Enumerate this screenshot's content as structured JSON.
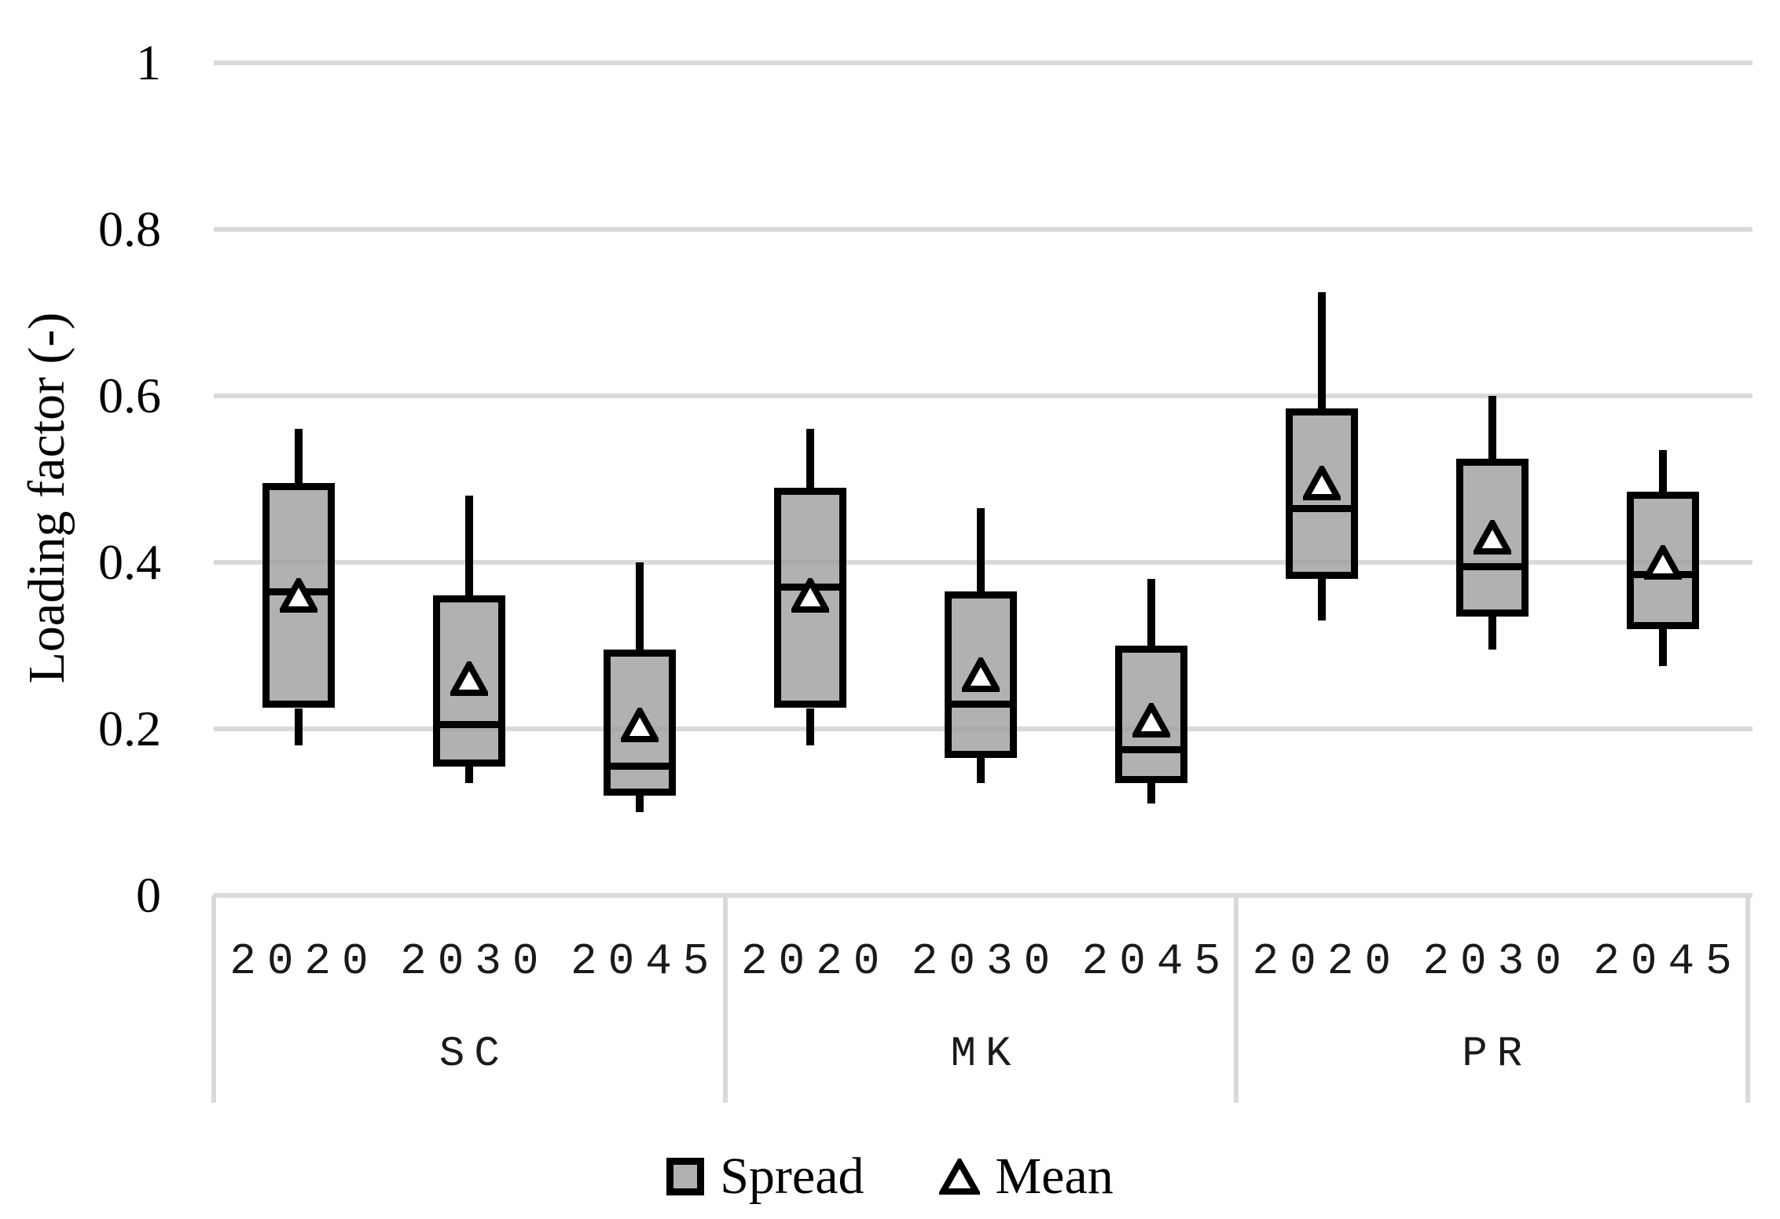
{
  "chart_data": {
    "type": "box",
    "title": "",
    "ylabel": "Loading factor (-)",
    "xlabel": "",
    "ylim": [
      0,
      1
    ],
    "yticks": [
      0,
      0.2,
      0.4,
      0.6,
      0.8,
      1
    ],
    "ytick_labels": [
      "0",
      "0.2",
      "0.4",
      "0.6",
      "0.8",
      "1"
    ],
    "grid": true,
    "legend_position": "bottom",
    "groups": [
      {
        "label": "SC",
        "years": [
          "2020",
          "2030",
          "2045"
        ]
      },
      {
        "label": "MK",
        "years": [
          "2020",
          "2030",
          "2045"
        ]
      },
      {
        "label": "PR",
        "years": [
          "2020",
          "2030",
          "2045"
        ]
      }
    ],
    "series": [
      {
        "group": "SC",
        "category": "2020",
        "whisker_low": 0.18,
        "q1": 0.225,
        "median": 0.365,
        "mean": 0.36,
        "q3": 0.495,
        "whisker_high": 0.56
      },
      {
        "group": "SC",
        "category": "2030",
        "whisker_low": 0.135,
        "q1": 0.155,
        "median": 0.205,
        "mean": 0.26,
        "q3": 0.36,
        "whisker_high": 0.48
      },
      {
        "group": "SC",
        "category": "2045",
        "whisker_low": 0.1,
        "q1": 0.12,
        "median": 0.155,
        "mean": 0.205,
        "q3": 0.295,
        "whisker_high": 0.4
      },
      {
        "group": "MK",
        "category": "2020",
        "whisker_low": 0.18,
        "q1": 0.225,
        "median": 0.37,
        "mean": 0.36,
        "q3": 0.49,
        "whisker_high": 0.56
      },
      {
        "group": "MK",
        "category": "2030",
        "whisker_low": 0.135,
        "q1": 0.165,
        "median": 0.23,
        "mean": 0.265,
        "q3": 0.365,
        "whisker_high": 0.465
      },
      {
        "group": "MK",
        "category": "2045",
        "whisker_low": 0.11,
        "q1": 0.135,
        "median": 0.175,
        "mean": 0.21,
        "q3": 0.3,
        "whisker_high": 0.38
      },
      {
        "group": "PR",
        "category": "2020",
        "whisker_low": 0.33,
        "q1": 0.38,
        "median": 0.465,
        "mean": 0.495,
        "q3": 0.585,
        "whisker_high": 0.725
      },
      {
        "group": "PR",
        "category": "2030",
        "whisker_low": 0.295,
        "q1": 0.335,
        "median": 0.395,
        "mean": 0.43,
        "q3": 0.525,
        "whisker_high": 0.6
      },
      {
        "group": "PR",
        "category": "2045",
        "whisker_low": 0.275,
        "q1": 0.32,
        "median": 0.385,
        "mean": 0.4,
        "q3": 0.485,
        "whisker_high": 0.535
      }
    ],
    "legend": [
      {
        "label": "Spread",
        "marker": "box"
      },
      {
        "label": "Mean",
        "marker": "triangle"
      }
    ]
  },
  "colors": {
    "box_fill": "#b1b1b1",
    "box_border": "#000000",
    "gridline": "#d9d9d9",
    "mean_fill": "#ffffff",
    "background": "#ffffff"
  }
}
